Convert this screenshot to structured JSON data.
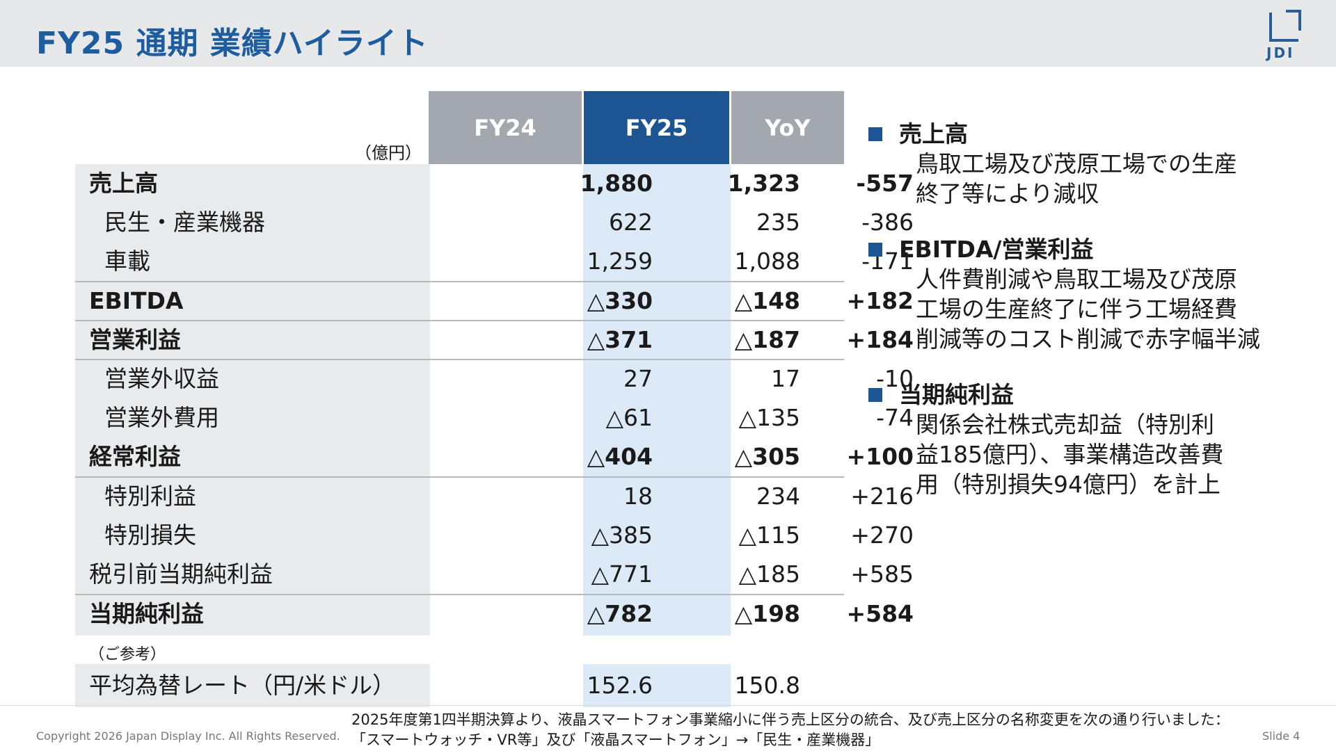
{
  "header": {
    "title": "FY25 通期 業績ハイライト",
    "logo_text": "JDI"
  },
  "table": {
    "unit": "（億円）",
    "columns": [
      "FY24",
      "FY25",
      "YoY"
    ],
    "rows": [
      {
        "label": "売上高",
        "fy24": "1,880",
        "fy25": "1,323",
        "yoy": "-557"
      },
      {
        "label": "民生・産業機器",
        "fy24": "622",
        "fy25": "235",
        "yoy": "-386"
      },
      {
        "label": "車載",
        "fy24": "1,259",
        "fy25": "1,088",
        "yoy": "-171"
      },
      {
        "label": "EBITDA",
        "fy24": "△330",
        "fy25": "△148",
        "yoy": "+182"
      },
      {
        "label": "営業利益",
        "fy24": "△371",
        "fy25": "△187",
        "yoy": "+184"
      },
      {
        "label": "営業外収益",
        "fy24": "27",
        "fy25": "17",
        "yoy": "-10"
      },
      {
        "label": "営業外費用",
        "fy24": "△61",
        "fy25": "△135",
        "yoy": "-74"
      },
      {
        "label": "経常利益",
        "fy24": "△404",
        "fy25": "△305",
        "yoy": "+100"
      },
      {
        "label": "特別利益",
        "fy24": "18",
        "fy25": "234",
        "yoy": "+216"
      },
      {
        "label": "特別損失",
        "fy24": "△385",
        "fy25": "△115",
        "yoy": "+270"
      },
      {
        "label": "税引前当期純利益",
        "fy24": "△771",
        "fy25": "△185",
        "yoy": "+585"
      },
      {
        "label": "当期純利益",
        "fy24": "△782",
        "fy25": "△198",
        "yoy": "+584"
      }
    ],
    "reference_label": "（ご参考）",
    "fx": {
      "label": "平均為替レート（円/米ドル）",
      "fy24": "152.6",
      "fy25": "150.8"
    }
  },
  "bullets": [
    {
      "heading": "売上高",
      "lines": [
        "鳥取工場及び茂原工場での生産",
        "終了等により減収"
      ]
    },
    {
      "heading": "EBITDA/営業利益",
      "lines": [
        "人件費削減や鳥取工場及び茂原",
        "工場の生産終了に伴う工場経費",
        "削減等のコスト削減で赤字幅半減"
      ]
    },
    {
      "heading": "当期純利益",
      "lines": [
        "関係会社株式売却益（特別利",
        "益185億円）、事業構造改善費",
        "用（特別損失94億円）を計上"
      ]
    }
  ],
  "footer": {
    "copyright": "Copyright 2026 Japan Display Inc. All Rights Reserved.",
    "note_line1": "2025年度第1四半期決算より、液晶スマートフォン事業縮小に伴う売上区分の統合、及び売上区分の名称変更を次の通り行いました：",
    "note_line2": "「スマートウォッチ・VR等」及び「液晶スマートフォン」→「民生・産業機器」",
    "slide": "Slide 4"
  }
}
